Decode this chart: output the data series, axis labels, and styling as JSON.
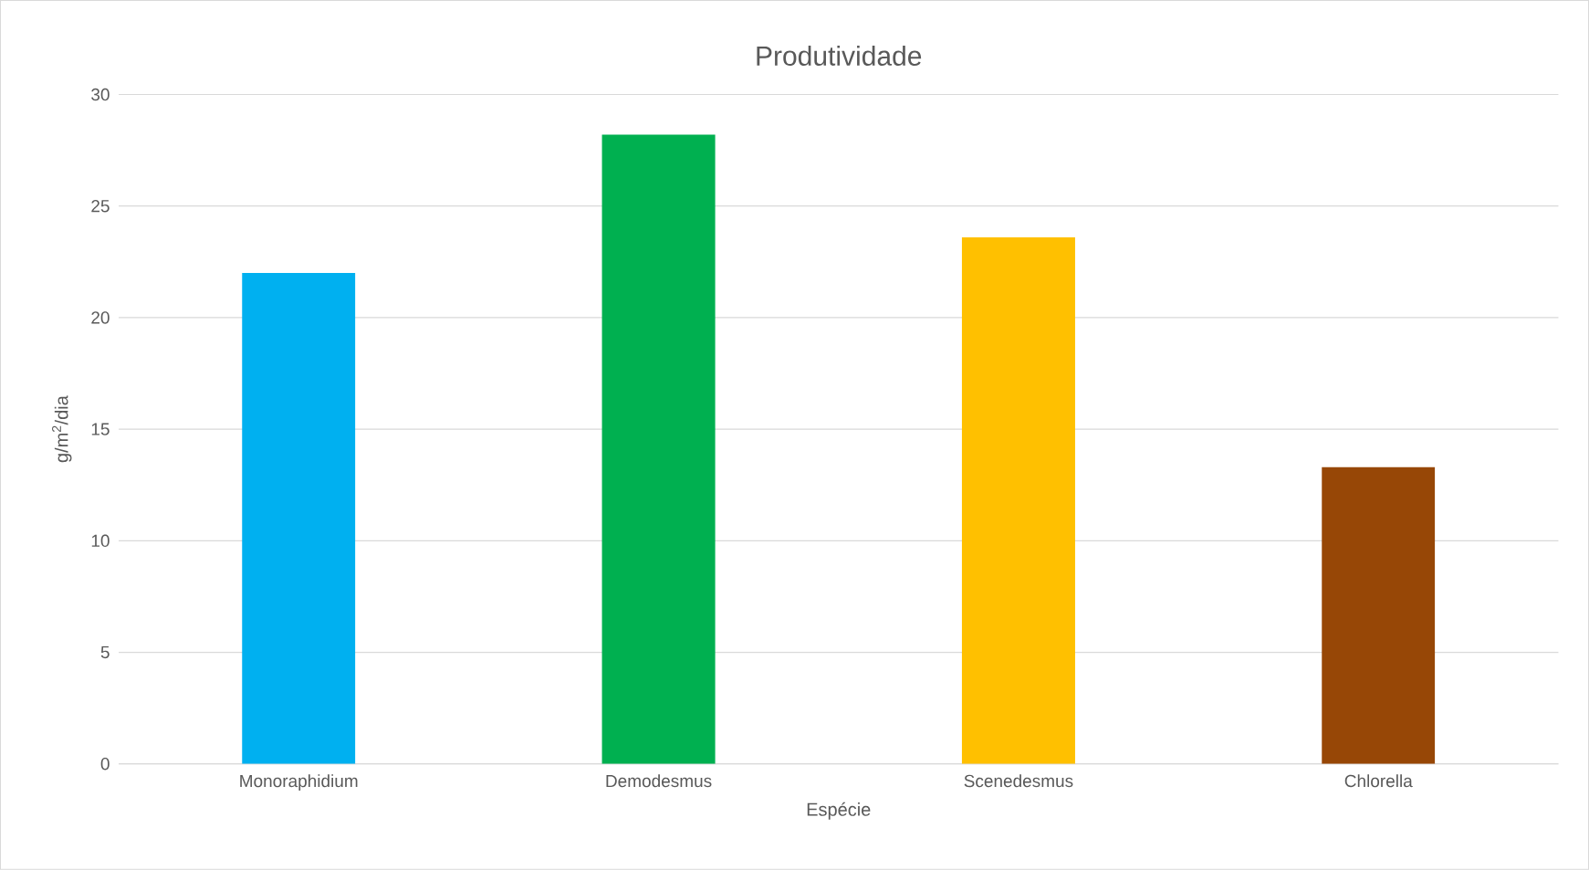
{
  "chart_data": {
    "type": "bar",
    "title": "Produtividade",
    "xlabel": "Espécie",
    "ylabel": "g/m$^{2}$/dia",
    "categories": [
      "Monoraphidium",
      "Demodesmus",
      "Scenedesmus",
      "Chlorella"
    ],
    "values": [
      22.0,
      28.2,
      23.6,
      13.3
    ],
    "colors": [
      "#00b0f0",
      "#00b050",
      "#ffc000",
      "#974706"
    ],
    "ylim": [
      0,
      30
    ],
    "yticks": [
      0,
      5,
      10,
      15,
      20,
      25,
      30
    ],
    "grid": "y"
  }
}
